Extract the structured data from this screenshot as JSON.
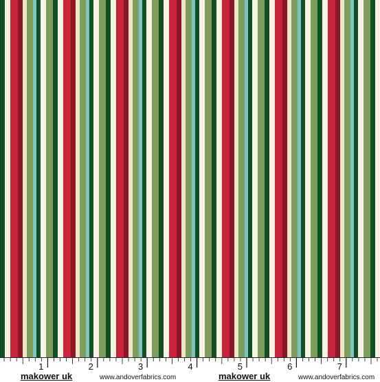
{
  "fabric": {
    "colors": {
      "cream": "#f7f2e4",
      "ivory": "#efe6c6",
      "red": "#c8243a",
      "wine": "#8b1627",
      "dark_green": "#0f4f22",
      "sage": "#7e9e5d",
      "aqua": "#7fc3c1",
      "white": "#ffffff"
    },
    "stripe_sequence": [
      "dark_green",
      "cream",
      "red",
      "wine",
      "ivory",
      "sage",
      "aqua",
      "dark_green",
      "cream",
      "sage"
    ]
  },
  "ruler": {
    "numbers": [
      "1",
      "2",
      "3",
      "4",
      "5",
      "6",
      "7"
    ]
  },
  "footer": {
    "brand_left": "makower uk",
    "site_left": "www.andoverfabrics.com",
    "brand_right": "makower uk",
    "site_right": "www.andoverfabrics.com"
  }
}
